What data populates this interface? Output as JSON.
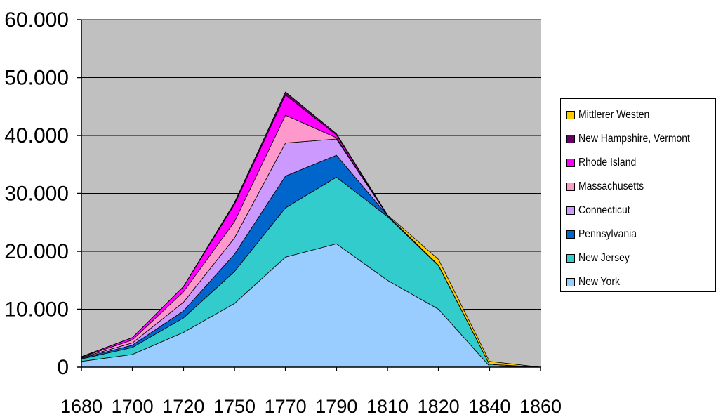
{
  "chart_data": {
    "type": "area",
    "stacked": true,
    "x": [
      "1680",
      "1700",
      "1720",
      "1750",
      "1770",
      "1790",
      "1810",
      "1820",
      "1840",
      "1860"
    ],
    "ylim": [
      0,
      60000
    ],
    "yticks": [
      0,
      10000,
      20000,
      30000,
      40000,
      50000,
      60000
    ],
    "ytick_labels": [
      "0",
      "10.000",
      "20.000",
      "30.000",
      "40.000",
      "50.000",
      "60.000"
    ],
    "grid": true,
    "legend_position": "right",
    "series": [
      {
        "name": "New York",
        "color": "#99ccff",
        "values": [
          1000,
          2200,
          6000,
          11000,
          19000,
          21300,
          15000,
          10000,
          200,
          0
        ]
      },
      {
        "name": "New Jersey",
        "color": "#33cccc",
        "values": [
          400,
          1200,
          2500,
          5500,
          8500,
          11500,
          11000,
          7500,
          300,
          0
        ]
      },
      {
        "name": "Pennsylvania",
        "color": "#0066cc",
        "values": [
          150,
          400,
          1200,
          3000,
          5500,
          3800,
          200,
          100,
          0,
          0
        ]
      },
      {
        "name": "Connecticut",
        "color": "#cc99ff",
        "values": [
          100,
          400,
          1500,
          2800,
          5700,
          2800,
          0,
          0,
          0,
          0
        ]
      },
      {
        "name": "Massachusetts",
        "color": "#ff99cc",
        "values": [
          100,
          500,
          1800,
          2800,
          4800,
          200,
          0,
          0,
          0,
          0
        ]
      },
      {
        "name": "Rhode Island",
        "color": "#ff00ff",
        "values": [
          50,
          400,
          900,
          3000,
          3500,
          500,
          0,
          0,
          0,
          0
        ]
      },
      {
        "name": "New Hampshire, Vermont",
        "color": "#660066",
        "values": [
          0,
          0,
          0,
          300,
          500,
          200,
          0,
          0,
          0,
          0
        ]
      },
      {
        "name": "Mittlerer Westen",
        "color": "#ffcc00",
        "values": [
          0,
          0,
          0,
          0,
          0,
          0,
          100,
          1000,
          500,
          0
        ]
      }
    ]
  }
}
